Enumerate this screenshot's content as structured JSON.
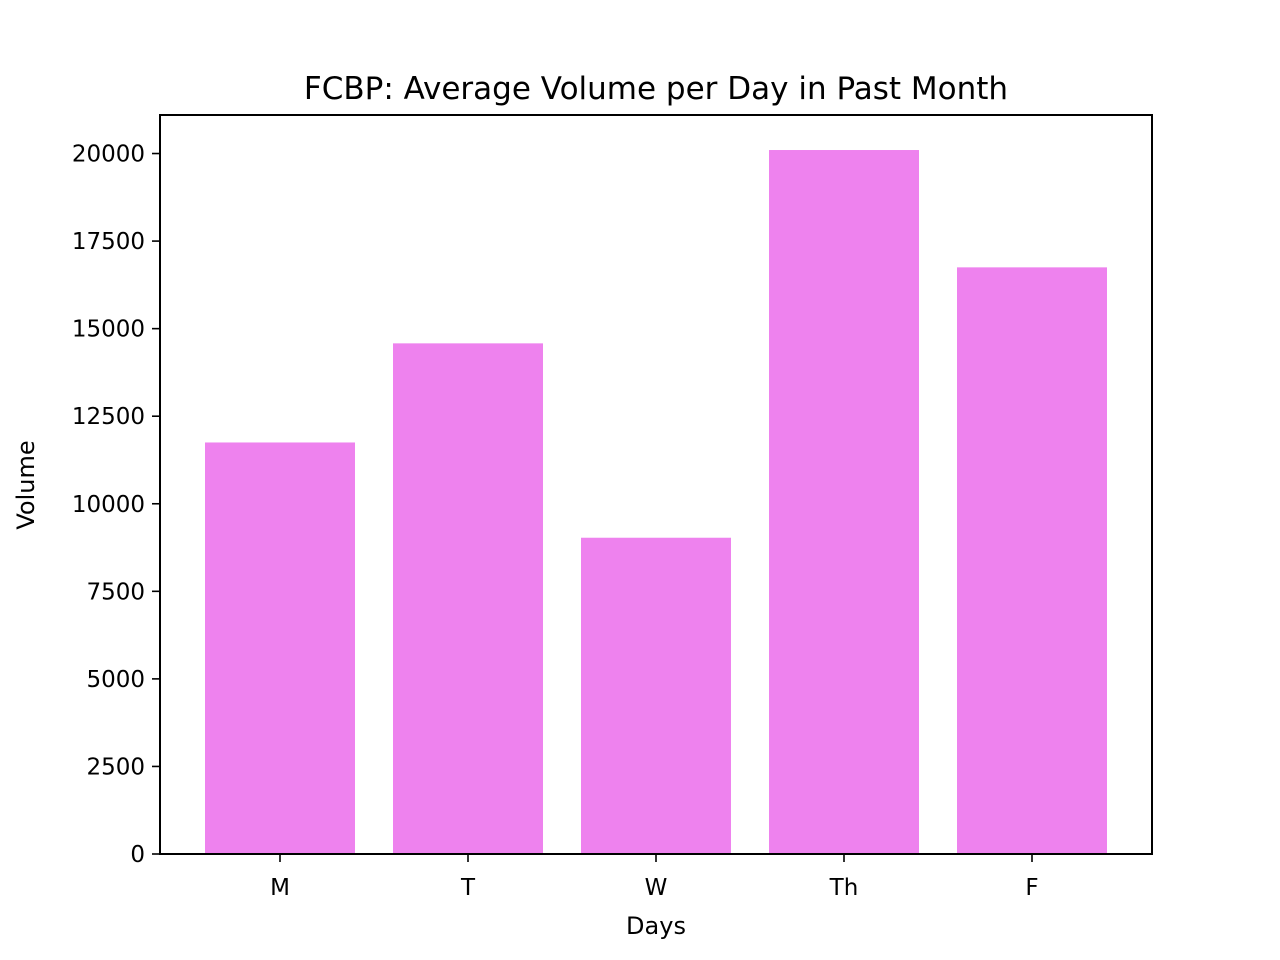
{
  "chart_data": {
    "type": "bar",
    "title": "FCBP: Average Volume per Day in Past Month",
    "xlabel": "Days",
    "ylabel": "Volume",
    "categories": [
      "M",
      "T",
      "W",
      "Th",
      "F"
    ],
    "values": [
      11750,
      14580,
      9030,
      20100,
      16750
    ],
    "ylim": [
      0,
      21100
    ],
    "yticks": [
      0,
      2500,
      5000,
      7500,
      10000,
      12500,
      15000,
      17500,
      20000
    ],
    "ytick_labels": [
      "0",
      "2500",
      "5000",
      "7500",
      "10000",
      "12500",
      "15000",
      "17500",
      "20000"
    ],
    "grid": false,
    "legend": "none",
    "bar_color": "#ee82ee"
  }
}
